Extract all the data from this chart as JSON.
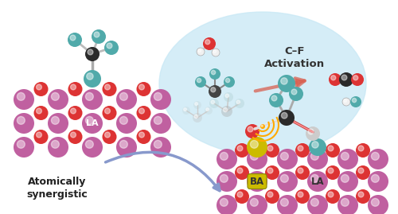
{
  "background_color": "#ffffff",
  "purple_color": "#c060a0",
  "red_color": "#dd3333",
  "teal_color": "#50aaaa",
  "dark_color": "#2a2a2a",
  "yellow_color": "#ccbb00",
  "white_color": "#f0f0f0",
  "gray_color": "#999999",
  "light_gray": "#cccccc",
  "orange_arrow_color": "#d96050",
  "blue_arrow_color": "#8899cc",
  "light_blue_bg": "#c8e8f5",
  "cf_text": "C–F\nActivation",
  "as_text": "Atomically\nsynergistic",
  "la_text": "LA",
  "ba_text": "BA"
}
